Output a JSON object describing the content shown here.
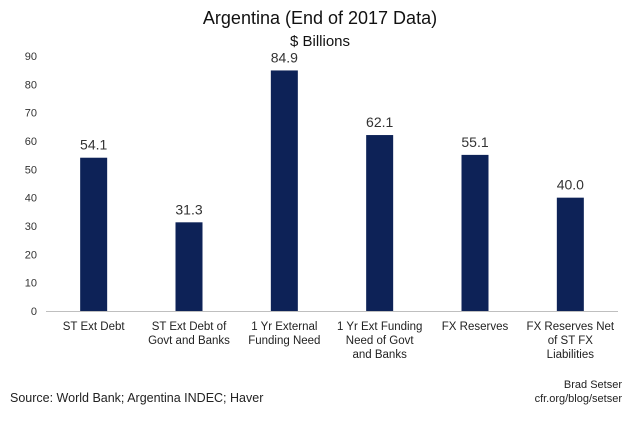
{
  "chart_data": {
    "type": "bar",
    "title": "Argentina (End of 2017 Data)",
    "subtitle": "$ Billions",
    "categories": [
      [
        "ST Ext Debt"
      ],
      [
        "ST Ext Debt of",
        "Govt and Banks"
      ],
      [
        "1 Yr External",
        "Funding Need"
      ],
      [
        "1 Yr Ext Funding",
        "Need of Govt",
        "and Banks"
      ],
      [
        "FX Reserves"
      ],
      [
        "FX Reserves Net",
        "of ST FX",
        "Liabilities"
      ]
    ],
    "values": [
      54.1,
      31.3,
      84.9,
      62.1,
      55.1,
      40.0
    ],
    "data_labels": [
      "54.1",
      "31.3",
      "84.9",
      "62.1",
      "55.1",
      "40.0"
    ],
    "y_ticks": [
      0,
      10,
      20,
      30,
      40,
      50,
      60,
      70,
      80,
      90
    ],
    "ylim": [
      0,
      90
    ],
    "grid": false,
    "bar_color": "#0d2257"
  },
  "footer": {
    "source": "Source: World Bank; Argentina INDEC; Haver",
    "credit_name": "Brad Setser",
    "credit_url": "cfr.org/blog/setser"
  }
}
